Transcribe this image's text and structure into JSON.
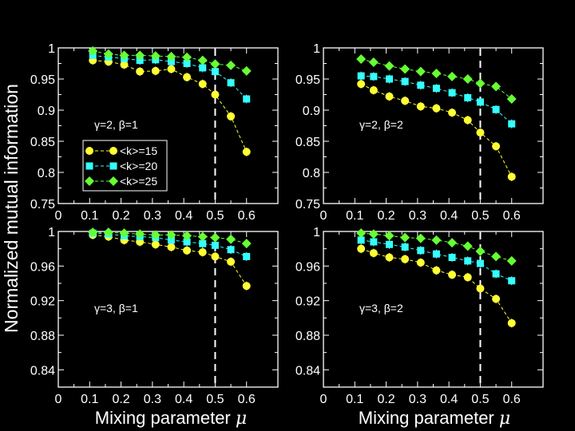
{
  "figure": {
    "ylabel": "Normalized mutual information",
    "xlabel": "Mixing parameter  μ",
    "xlabel_text": "Mixing parameter ",
    "xlabel_symbol": "μ",
    "colors": {
      "background": "#000000",
      "axes": "#ffffff",
      "text": "#ffffff",
      "threshold": "#ffffff"
    },
    "series_styles": [
      {
        "name": "<k>=15",
        "color": "#ffff33",
        "marker": "circle"
      },
      {
        "name": "<k>=20",
        "color": "#33ffff",
        "marker": "square"
      },
      {
        "name": "<k>=25",
        "color": "#66ff33",
        "marker": "diamond"
      }
    ],
    "legend": {
      "entries": [
        "<k>=15",
        "<k>=20",
        "<k>=25"
      ],
      "panel": 0,
      "location": "lower-left"
    }
  },
  "chart_data": [
    {
      "type": "line",
      "title": "",
      "annotation": "γ=2,  β=1",
      "gamma": "2",
      "beta": "1",
      "xlabel": "Mixing parameter  μ",
      "ylabel": "Normalized mutual information",
      "xlim": [
        0,
        0.7
      ],
      "ylim": [
        0.75,
        1
      ],
      "xticks": [
        0,
        0.1,
        0.2,
        0.3,
        0.4,
        0.5,
        0.6
      ],
      "xtick_labels": [
        "0",
        "0.1",
        "0.2",
        "0.3",
        "0.4",
        "0.5",
        "0.6"
      ],
      "yticks": [
        0.75,
        0.8,
        0.85,
        0.9,
        0.95,
        1
      ],
      "ytick_labels": [
        "0.75",
        "0.8",
        "0.85",
        "0.9",
        "0.95",
        "1"
      ],
      "threshold_x": 0.5,
      "x": [
        0.11,
        0.16,
        0.21,
        0.26,
        0.31,
        0.36,
        0.41,
        0.46,
        0.5,
        0.55,
        0.6
      ],
      "series": [
        {
          "name": "<k>=15",
          "values": [
            0.98,
            0.978,
            0.973,
            0.962,
            0.963,
            0.966,
            0.953,
            0.942,
            0.925,
            0.89,
            0.833
          ]
        },
        {
          "name": "<k>=20",
          "values": [
            0.988,
            0.985,
            0.983,
            0.98,
            0.981,
            0.978,
            0.975,
            0.968,
            0.962,
            0.944,
            0.918
          ]
        },
        {
          "name": "<k>=25",
          "values": [
            0.995,
            0.99,
            0.988,
            0.988,
            0.987,
            0.986,
            0.985,
            0.98,
            0.974,
            0.972,
            0.963
          ]
        }
      ]
    },
    {
      "type": "line",
      "title": "",
      "annotation": "γ=2,  β=2",
      "gamma": "2",
      "beta": "2",
      "xlabel": "Mixing parameter  μ",
      "ylabel": "",
      "xlim": [
        0,
        0.7
      ],
      "ylim": [
        0.75,
        1
      ],
      "xticks": [
        0,
        0.1,
        0.2,
        0.3,
        0.4,
        0.5,
        0.6
      ],
      "xtick_labels": [
        "0",
        "0.1",
        "0.2",
        "0.3",
        "0.4",
        "0.5",
        "0.6"
      ],
      "yticks": [
        0.75,
        0.8,
        0.85,
        0.9,
        0.95,
        1
      ],
      "ytick_labels": [
        "0.75",
        "0.8",
        "0.85",
        "0.9",
        "0.95",
        "1"
      ],
      "threshold_x": 0.5,
      "x": [
        0.12,
        0.16,
        0.21,
        0.26,
        0.31,
        0.36,
        0.41,
        0.46,
        0.5,
        0.55,
        0.6
      ],
      "series": [
        {
          "name": "<k>=15",
          "values": [
            0.942,
            0.932,
            0.922,
            0.915,
            0.906,
            0.903,
            0.896,
            0.884,
            0.864,
            0.842,
            0.793
          ]
        },
        {
          "name": "<k>=20",
          "values": [
            0.955,
            0.954,
            0.95,
            0.946,
            0.94,
            0.935,
            0.928,
            0.92,
            0.913,
            0.901,
            0.878
          ]
        },
        {
          "name": "<k>=25",
          "values": [
            0.982,
            0.977,
            0.971,
            0.966,
            0.962,
            0.959,
            0.954,
            0.95,
            0.943,
            0.938,
            0.918
          ]
        }
      ]
    },
    {
      "type": "line",
      "title": "",
      "annotation": "γ=3,  β=1",
      "gamma": "3",
      "beta": "1",
      "xlabel": "Mixing parameter  μ",
      "ylabel": "Normalized mutual information",
      "xlim": [
        0,
        0.7
      ],
      "ylim": [
        0.82,
        1
      ],
      "xticks": [
        0,
        0.1,
        0.2,
        0.3,
        0.4,
        0.5,
        0.6
      ],
      "xtick_labels": [
        "0",
        "0.1",
        "0.2",
        "0.3",
        "0.4",
        "0.5",
        "0.6"
      ],
      "yticks": [
        0.84,
        0.88,
        0.92,
        0.96,
        1
      ],
      "ytick_labels": [
        "0.84",
        "0.88",
        "0.92",
        "0.96",
        "1"
      ],
      "threshold_x": 0.5,
      "x": [
        0.11,
        0.16,
        0.21,
        0.26,
        0.31,
        0.36,
        0.41,
        0.46,
        0.5,
        0.55,
        0.6
      ],
      "series": [
        {
          "name": "<k>=15",
          "values": [
            0.996,
            0.994,
            0.99,
            0.988,
            0.985,
            0.982,
            0.978,
            0.976,
            0.971,
            0.965,
            0.937
          ]
        },
        {
          "name": "<k>=20",
          "values": [
            0.998,
            0.997,
            0.995,
            0.994,
            0.993,
            0.99,
            0.988,
            0.986,
            0.984,
            0.979,
            0.971
          ]
        },
        {
          "name": "<k>=25",
          "values": [
            0.999,
            0.999,
            0.998,
            0.997,
            0.996,
            0.996,
            0.995,
            0.994,
            0.993,
            0.991,
            0.986
          ]
        }
      ]
    },
    {
      "type": "line",
      "title": "",
      "annotation": "γ=3,  β=2",
      "gamma": "3",
      "beta": "2",
      "xlabel": "Mixing parameter  μ",
      "ylabel": "",
      "xlim": [
        0,
        0.7
      ],
      "ylim": [
        0.82,
        1
      ],
      "xticks": [
        0,
        0.1,
        0.2,
        0.3,
        0.4,
        0.5,
        0.6
      ],
      "xtick_labels": [
        "0",
        "0.1",
        "0.2",
        "0.3",
        "0.4",
        "0.5",
        "0.6"
      ],
      "yticks": [
        0.84,
        0.88,
        0.92,
        0.96,
        1
      ],
      "ytick_labels": [
        "0.84",
        "0.88",
        "0.92",
        "0.96",
        "1"
      ],
      "threshold_x": 0.5,
      "x": [
        0.12,
        0.16,
        0.21,
        0.26,
        0.31,
        0.36,
        0.41,
        0.46,
        0.5,
        0.55,
        0.6
      ],
      "series": [
        {
          "name": "<k>=15",
          "values": [
            0.98,
            0.975,
            0.97,
            0.968,
            0.964,
            0.955,
            0.95,
            0.947,
            0.934,
            0.922,
            0.894
          ]
        },
        {
          "name": "<k>=20",
          "values": [
            0.99,
            0.988,
            0.985,
            0.982,
            0.978,
            0.974,
            0.97,
            0.966,
            0.963,
            0.951,
            0.943
          ]
        },
        {
          "name": "<k>=25",
          "values": [
            0.998,
            0.997,
            0.995,
            0.993,
            0.992,
            0.99,
            0.987,
            0.983,
            0.977,
            0.971,
            0.966
          ]
        }
      ]
    }
  ]
}
